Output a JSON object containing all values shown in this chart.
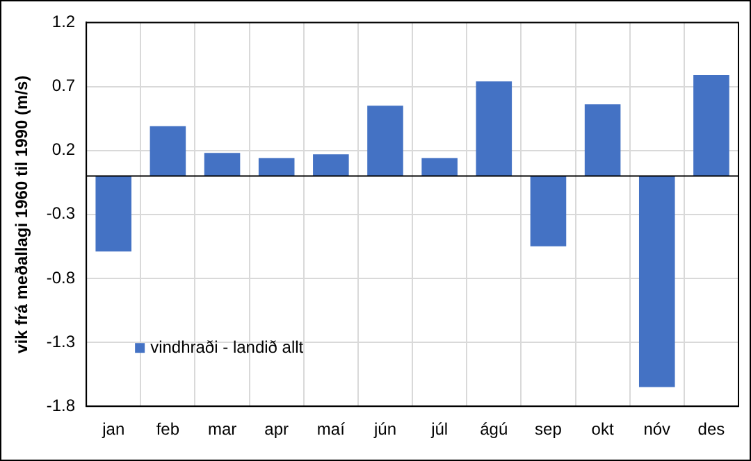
{
  "chart_data": {
    "type": "bar",
    "ylabel": "vik frá meðallagi 1960 til 1990 (m/s)",
    "categories": [
      "jan",
      "feb",
      "mar",
      "apr",
      "maí",
      "jún",
      "júl",
      "ágú",
      "sep",
      "okt",
      "nóv",
      "des"
    ],
    "series": [
      {
        "name": "vindhraði - landið allt",
        "color": "#4472c4",
        "values": [
          -0.59,
          0.39,
          0.18,
          0.14,
          0.17,
          0.55,
          0.14,
          0.74,
          -0.55,
          0.56,
          -1.65,
          0.79
        ]
      }
    ],
    "ylim": [
      -1.8,
      1.2
    ],
    "yticks": [
      -1.8,
      -1.3,
      -0.8,
      -0.3,
      0.2,
      0.7,
      1.2
    ],
    "grid": true,
    "legend": "bottom left"
  }
}
